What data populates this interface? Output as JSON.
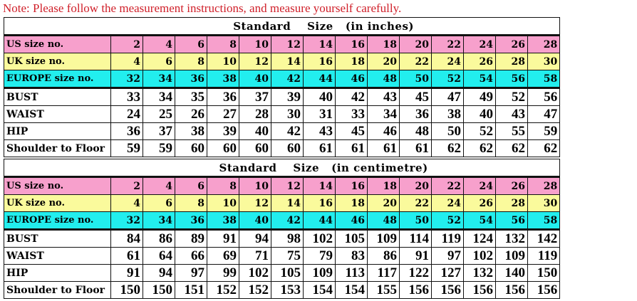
{
  "note": "Note: Please follow the measurement instructions, and measure yourself carefully.",
  "colors": {
    "note": "#d0202a",
    "us_row": "#f7a0cc",
    "uk_row": "#fafa9c",
    "europe_row": "#22eeee"
  },
  "tables": [
    {
      "title": "Standard    Size   (in inches)",
      "rows": [
        {
          "label": "US size no.",
          "kind": "us",
          "values": [
            2,
            4,
            6,
            8,
            10,
            12,
            14,
            16,
            18,
            20,
            22,
            24,
            26,
            28
          ]
        },
        {
          "label": "UK size no.",
          "kind": "uk",
          "values": [
            4,
            6,
            8,
            10,
            12,
            14,
            16,
            18,
            20,
            22,
            24,
            26,
            28,
            30
          ]
        },
        {
          "label": "EUROPE size no.",
          "kind": "eu",
          "values": [
            32,
            34,
            36,
            38,
            40,
            42,
            44,
            46,
            48,
            50,
            52,
            54,
            56,
            58
          ]
        },
        {
          "label": "BUST",
          "kind": "m",
          "values": [
            33,
            34,
            35,
            36,
            37,
            39,
            40,
            42,
            43,
            45,
            47,
            49,
            52,
            56
          ]
        },
        {
          "label": "WAIST",
          "kind": "m",
          "values": [
            24,
            25,
            26,
            27,
            28,
            30,
            31,
            33,
            34,
            36,
            38,
            40,
            43,
            47
          ]
        },
        {
          "label": "HIP",
          "kind": "m",
          "values": [
            36,
            37,
            38,
            39,
            40,
            42,
            43,
            45,
            46,
            48,
            50,
            52,
            55,
            59
          ]
        },
        {
          "label": "Shoulder to Floor",
          "kind": "m",
          "values": [
            59,
            59,
            60,
            60,
            60,
            60,
            61,
            61,
            61,
            61,
            62,
            62,
            62,
            62
          ]
        }
      ]
    },
    {
      "title": "Standard    Size   (in centimetre)",
      "rows": [
        {
          "label": "US size no.",
          "kind": "us",
          "values": [
            2,
            4,
            6,
            8,
            10,
            12,
            14,
            16,
            18,
            20,
            22,
            24,
            26,
            28
          ]
        },
        {
          "label": "UK size no.",
          "kind": "uk",
          "values": [
            4,
            6,
            8,
            10,
            12,
            14,
            16,
            18,
            20,
            22,
            24,
            26,
            28,
            30
          ]
        },
        {
          "label": "EUROPE size no.",
          "kind": "eu",
          "values": [
            32,
            34,
            36,
            38,
            40,
            42,
            44,
            46,
            48,
            50,
            52,
            54,
            56,
            58
          ]
        },
        {
          "label": "BUST",
          "kind": "m",
          "values": [
            84,
            86,
            89,
            91,
            94,
            98,
            102,
            105,
            109,
            114,
            119,
            124,
            132,
            142
          ]
        },
        {
          "label": "WAIST",
          "kind": "m",
          "values": [
            61,
            64,
            66,
            69,
            71,
            75,
            79,
            83,
            86,
            91,
            97,
            102,
            109,
            119
          ]
        },
        {
          "label": "HIP",
          "kind": "m",
          "values": [
            91,
            94,
            97,
            99,
            102,
            105,
            109,
            113,
            117,
            122,
            127,
            132,
            140,
            150
          ]
        },
        {
          "label": "Shoulder to Floor",
          "kind": "m",
          "values": [
            150,
            150,
            151,
            152,
            152,
            153,
            154,
            154,
            155,
            156,
            156,
            156,
            156,
            156
          ]
        }
      ]
    }
  ]
}
